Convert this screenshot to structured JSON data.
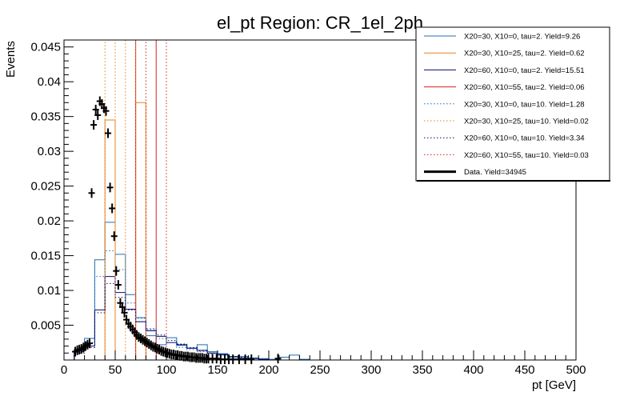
{
  "chart_data": {
    "type": "line",
    "title": "el_pt Region: CR_1el_2ph",
    "xlabel": "pt [GeV]",
    "ylabel": "Events",
    "xlim": [
      0,
      500
    ],
    "ylim": [
      0,
      0.046
    ],
    "x_ticks": [
      0,
      50,
      100,
      150,
      200,
      250,
      300,
      350,
      400,
      450,
      500
    ],
    "x_tick_labels": [
      "0",
      "50",
      "100",
      "150",
      "200",
      "250",
      "300",
      "350",
      "400",
      "450",
      "500"
    ],
    "y_ticks": [
      0.005,
      0.01,
      0.015,
      0.02,
      0.025,
      0.03,
      0.035,
      0.04,
      0.045
    ],
    "y_tick_labels": [
      "0.005",
      "0.01",
      "0.015",
      "0.02",
      "0.025",
      "0.03",
      "0.035",
      "0.04",
      "0.045"
    ],
    "grid": false,
    "legend_position": "top-right",
    "bin_width": 10,
    "series": [
      {
        "name": "X20=30, X10=0, tau=2. Yield=9.26",
        "color": "#1f6fb4",
        "style": "solid",
        "bins": [
          [
            10,
            0.0015
          ],
          [
            20,
            0.0031
          ],
          [
            30,
            0.0144
          ],
          [
            40,
            0.0198
          ],
          [
            50,
            0.0152
          ],
          [
            60,
            0.0094
          ],
          [
            70,
            0.0061
          ],
          [
            80,
            0.0035
          ],
          [
            90,
            0.0022
          ],
          [
            100,
            0.0032
          ],
          [
            110,
            0.0021
          ],
          [
            120,
            0.0017
          ],
          [
            130,
            0.0022
          ],
          [
            140,
            0.0012
          ],
          [
            150,
            0.0009
          ],
          [
            160,
            0.0004
          ],
          [
            170,
            0.0005
          ],
          [
            180,
            0.0003
          ],
          [
            190,
            0.0002
          ],
          [
            200,
            0.0001
          ],
          [
            210,
            0.0004
          ],
          [
            220,
            0.0007
          ],
          [
            230,
            0.0001
          ]
        ]
      },
      {
        "name": "X20=30, X10=25, tau=2. Yield=0.62",
        "color": "#e8801b",
        "style": "solid",
        "bins": [
          [
            30,
            0.0
          ],
          [
            40,
            0.0345
          ],
          [
            50,
            0.0
          ],
          [
            60,
            0.0
          ],
          [
            70,
            0.037
          ],
          [
            80,
            0.0
          ]
        ]
      },
      {
        "name": "X20=60, X10=0, tau=2. Yield=15.51",
        "color": "#0a0a6e",
        "style": "solid",
        "bins": [
          [
            10,
            0.0013
          ],
          [
            20,
            0.002
          ],
          [
            30,
            0.0072
          ],
          [
            40,
            0.012
          ],
          [
            50,
            0.0097
          ],
          [
            60,
            0.0073
          ],
          [
            70,
            0.0055
          ],
          [
            80,
            0.0042
          ],
          [
            90,
            0.0034
          ],
          [
            100,
            0.0025
          ],
          [
            110,
            0.0022
          ],
          [
            120,
            0.0017
          ],
          [
            130,
            0.0014
          ],
          [
            140,
            0.001
          ],
          [
            150,
            0.0008
          ],
          [
            160,
            0.0005
          ],
          [
            170,
            0.0003
          ],
          [
            180,
            0.0002
          ],
          [
            190,
            0.0001
          ]
        ]
      },
      {
        "name": "X20=60, X10=55, tau=2. Yield=0.06",
        "color": "#d42020",
        "style": "solid",
        "bins": [
          [
            50,
            0.0
          ],
          [
            60,
            0.0
          ],
          [
            70,
            0.046
          ],
          [
            80,
            0.046
          ],
          [
            90,
            0.0
          ]
        ]
      },
      {
        "name": "X20=30, X10=0, tau=10. Yield=1.28",
        "color": "#1f6fb4",
        "style": "dotted",
        "bins": [
          [
            10,
            0.0012
          ],
          [
            20,
            0.0025
          ],
          [
            30,
            0.012
          ],
          [
            40,
            0.0157
          ],
          [
            50,
            0.013
          ],
          [
            60,
            0.0082
          ],
          [
            70,
            0.006
          ],
          [
            80,
            0.0045
          ],
          [
            90,
            0.0031
          ],
          [
            100,
            0.0025
          ],
          [
            110,
            0.0018
          ],
          [
            120,
            0.0015
          ],
          [
            130,
            0.0012
          ],
          [
            140,
            0.0009
          ],
          [
            150,
            0.0007
          ],
          [
            160,
            0.0005
          ],
          [
            170,
            0.0003
          ],
          [
            180,
            0.0002
          ]
        ]
      },
      {
        "name": "X20=30, X10=25, tau=10. Yield=0.02",
        "color": "#e8801b",
        "style": "dotted",
        "bins": [
          [
            40,
            0.046
          ],
          [
            50,
            0.0
          ],
          [
            60,
            0.046
          ]
        ]
      },
      {
        "name": "X20=60, X10=0, tau=10. Yield=3.34",
        "color": "#0a0a6e",
        "style": "dotted",
        "bins": [
          [
            10,
            0.001
          ],
          [
            20,
            0.0018
          ],
          [
            30,
            0.0068
          ],
          [
            40,
            0.011
          ],
          [
            50,
            0.009
          ],
          [
            60,
            0.0072
          ],
          [
            70,
            0.0055
          ],
          [
            80,
            0.0044
          ],
          [
            90,
            0.0036
          ],
          [
            100,
            0.0028
          ],
          [
            110,
            0.0023
          ],
          [
            120,
            0.0018
          ],
          [
            130,
            0.0013
          ],
          [
            140,
            0.001
          ],
          [
            150,
            0.0007
          ],
          [
            160,
            0.0005
          ],
          [
            170,
            0.0004
          ],
          [
            180,
            0.0002
          ]
        ]
      },
      {
        "name": "X20=60, X10=55, tau=10. Yield=0.03",
        "color": "#d42020",
        "style": "dotted",
        "bins": [
          [
            80,
            0.046
          ],
          [
            90,
            0.046
          ]
        ]
      }
    ],
    "data": {
      "name": "Data. Yield=34945",
      "color": "#000000",
      "points": [
        [
          11,
          0.0012
        ],
        [
          13,
          0.0014
        ],
        [
          15,
          0.0015
        ],
        [
          17,
          0.0016
        ],
        [
          19,
          0.0018
        ],
        [
          21,
          0.002
        ],
        [
          23,
          0.0022
        ],
        [
          25,
          0.0024
        ],
        [
          27,
          0.024
        ],
        [
          29,
          0.0338
        ],
        [
          31,
          0.036
        ],
        [
          33,
          0.0352
        ],
        [
          35,
          0.0372
        ],
        [
          37,
          0.0368
        ],
        [
          39,
          0.0362
        ],
        [
          41,
          0.0358
        ],
        [
          43,
          0.0326
        ],
        [
          45,
          0.0248
        ],
        [
          47,
          0.0218
        ],
        [
          49,
          0.0178
        ],
        [
          51,
          0.0128
        ],
        [
          53,
          0.0108
        ],
        [
          55,
          0.0082
        ],
        [
          57,
          0.0076
        ],
        [
          59,
          0.0068
        ],
        [
          61,
          0.0058
        ],
        [
          63,
          0.0052
        ],
        [
          65,
          0.0048
        ],
        [
          67,
          0.0044
        ],
        [
          69,
          0.004
        ],
        [
          71,
          0.0036
        ],
        [
          73,
          0.0033
        ],
        [
          75,
          0.0031
        ],
        [
          77,
          0.0029
        ],
        [
          79,
          0.0027
        ],
        [
          81,
          0.0025
        ],
        [
          83,
          0.0023
        ],
        [
          85,
          0.0021
        ],
        [
          87,
          0.0019
        ],
        [
          89,
          0.0018
        ],
        [
          91,
          0.0016
        ],
        [
          93,
          0.0015
        ],
        [
          95,
          0.0013
        ],
        [
          97,
          0.0012
        ],
        [
          99,
          0.0011
        ],
        [
          101,
          0.001
        ],
        [
          103,
          0.0009
        ],
        [
          105,
          0.0008
        ],
        [
          107,
          0.0008
        ],
        [
          109,
          0.0007
        ],
        [
          111,
          0.0007
        ],
        [
          113,
          0.0006
        ],
        [
          115,
          0.0006
        ],
        [
          117,
          0.0005
        ],
        [
          119,
          0.0005
        ],
        [
          121,
          0.0005
        ],
        [
          123,
          0.0004
        ],
        [
          125,
          0.0004
        ],
        [
          127,
          0.0004
        ],
        [
          129,
          0.0003
        ],
        [
          131,
          0.0003
        ],
        [
          133,
          0.0003
        ],
        [
          135,
          0.0003
        ],
        [
          137,
          0.0002
        ],
        [
          139,
          0.0002
        ],
        [
          141,
          0.0002
        ],
        [
          145,
          0.0002
        ],
        [
          149,
          0.0002
        ],
        [
          153,
          0.0001
        ],
        [
          157,
          0.0001
        ],
        [
          161,
          0.0001
        ],
        [
          165,
          0.0001
        ],
        [
          171,
          0.0001
        ],
        [
          177,
          0.0001
        ],
        [
          183,
          0.0001
        ],
        [
          209,
          0.0002
        ]
      ]
    }
  }
}
